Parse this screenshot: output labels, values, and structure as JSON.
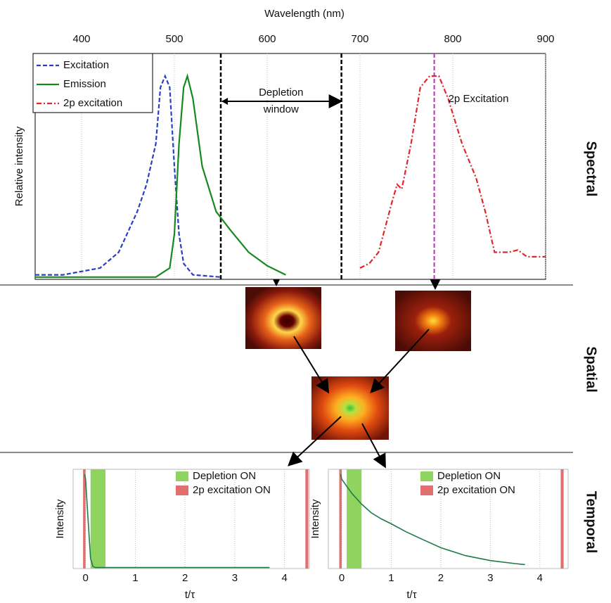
{
  "section_labels": [
    "Spectral",
    "Spatial",
    "Temporal"
  ],
  "chart_data": [
    {
      "type": "line",
      "xlabel": "Wavelength (nm)",
      "ylabel": "Relative intensity",
      "xlim": [
        350,
        900
      ],
      "xticks": [
        400,
        500,
        600,
        700,
        800,
        900
      ],
      "ylim": [
        0,
        1
      ],
      "grid": true,
      "legend": "upper left",
      "series": [
        {
          "name": "Excitation",
          "color": "#2b3fc4",
          "style": "dashed",
          "x": [
            350,
            380,
            420,
            440,
            460,
            470,
            480,
            485,
            490,
            495,
            500,
            505,
            510,
            520,
            550
          ],
          "values": [
            0.02,
            0.02,
            0.05,
            0.12,
            0.3,
            0.42,
            0.6,
            0.85,
            0.9,
            0.85,
            0.5,
            0.2,
            0.07,
            0.02,
            0.01
          ]
        },
        {
          "name": "Emission",
          "color": "#168a1e",
          "style": "solid",
          "x": [
            350,
            480,
            495,
            500,
            505,
            510,
            514,
            520,
            530,
            545,
            560,
            580,
            600,
            620
          ],
          "values": [
            0.01,
            0.01,
            0.05,
            0.2,
            0.6,
            0.85,
            0.9,
            0.8,
            0.5,
            0.3,
            0.22,
            0.12,
            0.06,
            0.02
          ]
        },
        {
          "name": "2p excitation",
          "color": "#e0262a",
          "style": "dashdot",
          "x": [
            700,
            710,
            720,
            735,
            740,
            745,
            755,
            765,
            775,
            785,
            795,
            810,
            825,
            835,
            845,
            860,
            870,
            880,
            890,
            900
          ],
          "values": [
            0.05,
            0.07,
            0.12,
            0.35,
            0.42,
            0.4,
            0.6,
            0.85,
            0.9,
            0.9,
            0.8,
            0.6,
            0.45,
            0.3,
            0.12,
            0.12,
            0.13,
            0.1,
            0.1,
            0.1
          ]
        }
      ],
      "vlines": [
        {
          "x": 550,
          "color": "#000000"
        },
        {
          "x": 680,
          "color": "#000000"
        },
        {
          "x": 780,
          "color": "#c030c0"
        }
      ],
      "annotations": {
        "depletion": [
          "Depletion",
          "window"
        ],
        "two_photon": "2p Excitation"
      }
    },
    {
      "type": "line",
      "xlabel": "t/τ",
      "ylabel": "Intensity",
      "xlim": [
        -0.25,
        4.5
      ],
      "xticks": [
        0,
        1,
        2,
        3,
        4
      ],
      "ylim": [
        0,
        1
      ],
      "grid": true,
      "bands": [
        {
          "name": "Depletion ON",
          "color": "#8fd45e",
          "ranges": [
            [
              0.1,
              0.4
            ]
          ]
        },
        {
          "name": "2p excitation ON",
          "color": "#e07070",
          "ranges": [
            [
              -0.05,
              0
            ],
            [
              4.42,
              4.48
            ]
          ]
        }
      ],
      "series": [
        {
          "color": "#1f7a4a",
          "style": "solid",
          "x": [
            -0.02,
            0,
            0.05,
            0.1,
            0.15,
            0.2,
            3.7
          ],
          "values": [
            0.95,
            0.9,
            0.5,
            0.1,
            0.02,
            0.01,
            0.01
          ]
        }
      ]
    },
    {
      "type": "line",
      "xlabel": "t/τ",
      "ylabel": "Intensity",
      "xlim": [
        -0.27,
        4.57
      ],
      "xticks": [
        0,
        1,
        2,
        3,
        4
      ],
      "ylim": [
        0,
        1
      ],
      "grid": true,
      "bands": [
        {
          "name": "Depletion ON",
          "color": "#8fd45e",
          "ranges": [
            [
              0.1,
              0.4
            ]
          ]
        },
        {
          "name": "2p excitation ON",
          "color": "#e07070",
          "ranges": [
            [
              -0.05,
              0
            ],
            [
              4.42,
              4.48
            ]
          ]
        }
      ],
      "series": [
        {
          "color": "#1f7a4a",
          "style": "solid",
          "x": [
            -0.02,
            0,
            0.2,
            0.4,
            0.6,
            0.8,
            1,
            1.3,
            1.6,
            2,
            2.5,
            3,
            3.5,
            3.7
          ],
          "values": [
            0.95,
            0.9,
            0.76,
            0.65,
            0.56,
            0.5,
            0.45,
            0.37,
            0.3,
            0.21,
            0.13,
            0.08,
            0.05,
            0.04
          ]
        }
      ]
    }
  ]
}
